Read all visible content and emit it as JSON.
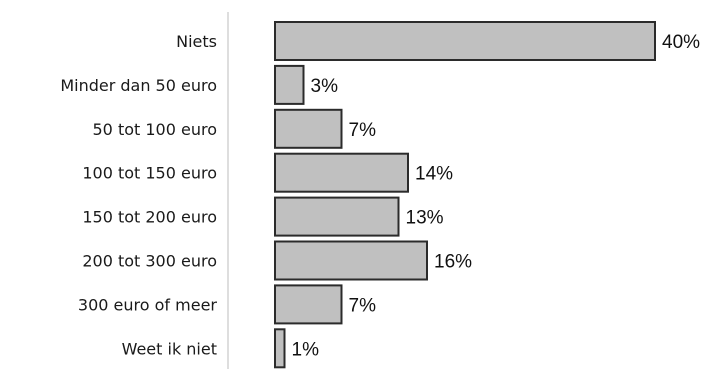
{
  "chart_data": {
    "type": "bar",
    "orientation": "horizontal",
    "title": "",
    "xlabel": "",
    "ylabel": "",
    "categories": [
      "Niets",
      "Minder dan 50 euro",
      "50 tot 100 euro",
      "100 tot 150 euro",
      "150 tot 200 euro",
      "200 tot 300 euro",
      "300 euro of meer",
      "Weet ik niet"
    ],
    "values": [
      40,
      3,
      7,
      14,
      13,
      16,
      7,
      1
    ],
    "value_labels": [
      "40%",
      "3%",
      "7%",
      "14%",
      "13%",
      "16%",
      "7%",
      "1%"
    ],
    "xlim": [
      0,
      40
    ],
    "grid": false,
    "legend": "none",
    "colors": {
      "bar_fill": "#c0c0c0",
      "bar_stroke": "#2b2b2b",
      "axis_line": "#c8c8c8"
    }
  }
}
